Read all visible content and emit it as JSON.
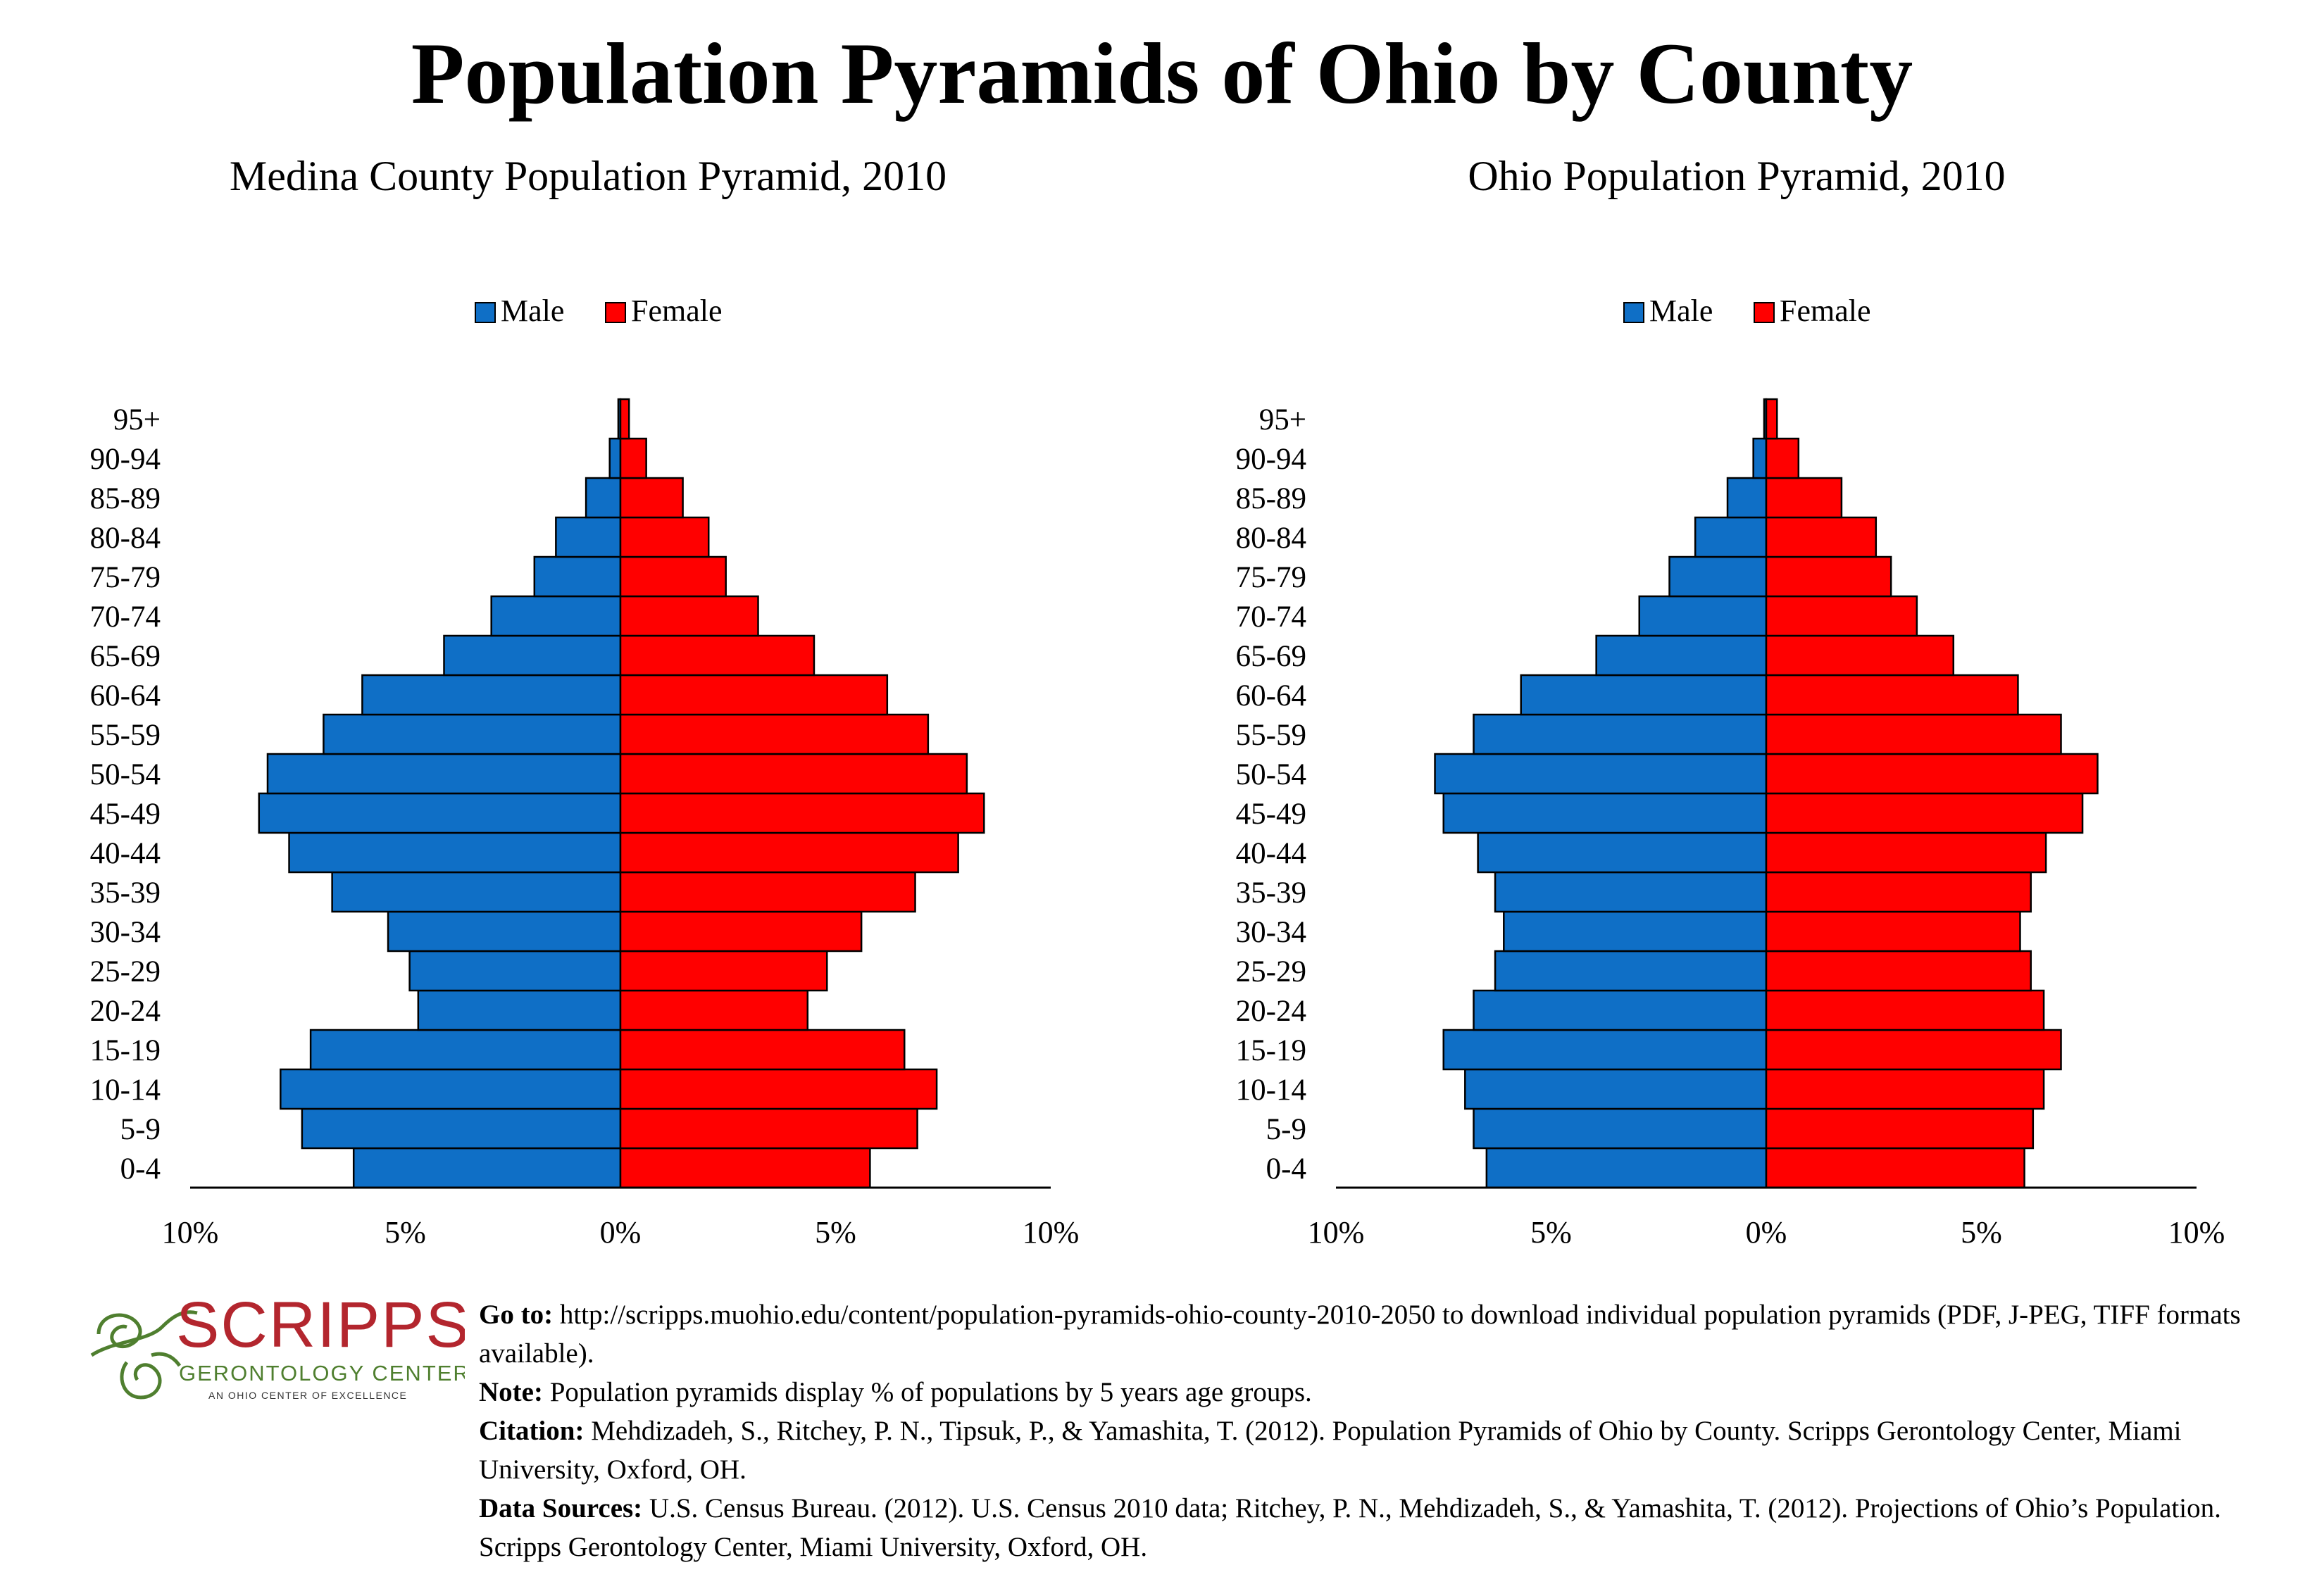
{
  "title": "Population Pyramids of Ohio by County",
  "colors": {
    "male": "#0f6fc6",
    "female": "#ff0000",
    "logo_red": "#b3262e",
    "logo_green": "#4f7f2f"
  },
  "chart_data": [
    {
      "type": "bar",
      "orientation": "horizontal-pyramid",
      "title": "Medina County Population Pyramid, 2010",
      "legend_position": "top",
      "categories": [
        "0-4",
        "5-9",
        "10-14",
        "15-19",
        "20-24",
        "25-29",
        "30-34",
        "35-39",
        "40-44",
        "45-49",
        "50-54",
        "55-59",
        "60-64",
        "65-69",
        "70-74",
        "75-79",
        "80-84",
        "85-89",
        "90-94",
        "95+"
      ],
      "series": [
        {
          "name": "Male",
          "values": [
            6.2,
            7.4,
            7.9,
            7.2,
            4.7,
            4.9,
            5.4,
            6.7,
            7.7,
            8.4,
            8.2,
            6.9,
            6.0,
            4.1,
            3.0,
            2.0,
            1.5,
            0.8,
            0.25,
            0.05
          ]
        },
        {
          "name": "Female",
          "values": [
            5.8,
            6.9,
            7.35,
            6.6,
            4.35,
            4.8,
            5.6,
            6.85,
            7.85,
            8.45,
            8.05,
            7.15,
            6.2,
            4.5,
            3.2,
            2.45,
            2.05,
            1.45,
            0.6,
            0.2
          ]
        }
      ],
      "xlim": [
        -10,
        10
      ],
      "x_tick_labels": [
        "10%",
        "5%",
        "0%",
        "5%",
        "10%"
      ]
    },
    {
      "type": "bar",
      "orientation": "horizontal-pyramid",
      "title": "Ohio Population Pyramid, 2010",
      "legend_position": "top",
      "categories": [
        "0-4",
        "5-9",
        "10-14",
        "15-19",
        "20-24",
        "25-29",
        "30-34",
        "35-39",
        "40-44",
        "45-49",
        "50-54",
        "55-59",
        "60-64",
        "65-69",
        "70-74",
        "75-79",
        "80-84",
        "85-89",
        "90-94",
        "95+"
      ],
      "series": [
        {
          "name": "Male",
          "values": [
            6.5,
            6.8,
            7.0,
            7.5,
            6.8,
            6.3,
            6.1,
            6.3,
            6.7,
            7.5,
            7.7,
            6.8,
            5.7,
            3.95,
            2.95,
            2.25,
            1.65,
            0.9,
            0.3,
            0.05
          ]
        },
        {
          "name": "Female",
          "values": [
            6.0,
            6.2,
            6.45,
            6.85,
            6.45,
            6.15,
            5.9,
            6.15,
            6.5,
            7.35,
            7.7,
            6.85,
            5.85,
            4.35,
            3.5,
            2.9,
            2.55,
            1.75,
            0.75,
            0.25
          ]
        }
      ],
      "xlim": [
        -10,
        10
      ],
      "x_tick_labels": [
        "10%",
        "5%",
        "0%",
        "5%",
        "10%"
      ]
    }
  ],
  "logo": {
    "name": "SCRIPPS",
    "line1": "GERONTOLOGY CENTER",
    "line2": "AN OHIO CENTER OF EXCELLENCE"
  },
  "footer": {
    "goto_label": "Go to:",
    "goto_text": " http://scripps.muohio.edu/content/population-pyramids-ohio-county-2010-2050 to download individual population pyramids (PDF, J-PEG, TIFF formats available).",
    "note_label": "Note:",
    "note_text": " Population pyramids display % of populations by 5 years age groups.",
    "citation_label": "Citation:",
    "citation_text": " Mehdizadeh, S., Ritchey, P. N., Tipsuk, P., & Yamashita, T. (2012). Population Pyramids of Ohio by County. Scripps Gerontology Center, Miami University, Oxford, OH.",
    "sources_label": "Data Sources:",
    "sources_text": " U.S. Census Bureau. (2012). U.S. Census 2010 data; Ritchey, P. N., Mehdizadeh, S., & Yamashita, T. (2012). Projections of Ohio’s Population. Scripps Gerontology Center, Miami University, Oxford, OH."
  }
}
